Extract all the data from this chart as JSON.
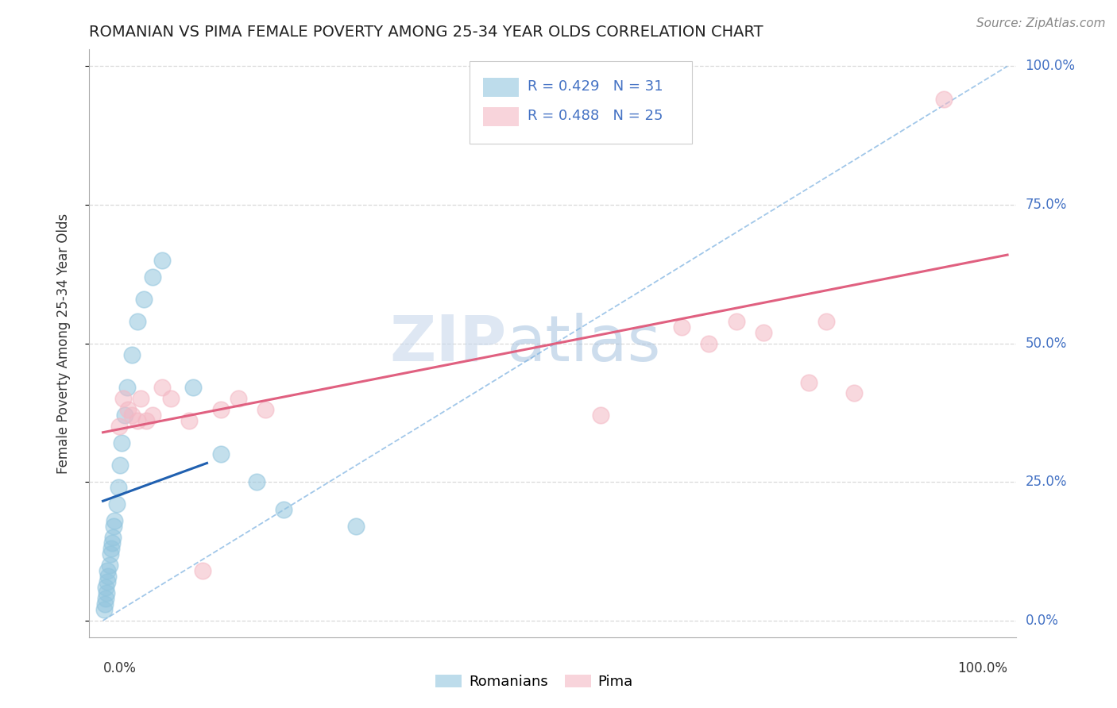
{
  "title": "ROMANIAN VS PIMA FEMALE POVERTY AMONG 25-34 YEAR OLDS CORRELATION CHART",
  "source": "Source: ZipAtlas.com",
  "ylabel": "Female Poverty Among 25-34 Year Olds",
  "legend_romanian": "R = 0.429   N = 31",
  "legend_pima": "R = 0.488   N = 25",
  "legend_label1": "Romanians",
  "legend_label2": "Pima",
  "romanian_x": [
    0.001,
    0.002,
    0.003,
    0.003,
    0.004,
    0.005,
    0.005,
    0.006,
    0.007,
    0.008,
    0.009,
    0.01,
    0.011,
    0.012,
    0.013,
    0.015,
    0.017,
    0.019,
    0.021,
    0.024,
    0.027,
    0.032,
    0.038,
    0.045,
    0.055,
    0.065,
    0.1,
    0.13,
    0.17,
    0.2,
    0.28
  ],
  "romanian_y": [
    0.02,
    0.03,
    0.04,
    0.06,
    0.05,
    0.07,
    0.09,
    0.08,
    0.1,
    0.12,
    0.13,
    0.14,
    0.15,
    0.17,
    0.18,
    0.21,
    0.24,
    0.28,
    0.32,
    0.37,
    0.42,
    0.48,
    0.54,
    0.58,
    0.62,
    0.65,
    0.42,
    0.3,
    0.25,
    0.2,
    0.17
  ],
  "pima_x": [
    0.018,
    0.022,
    0.028,
    0.032,
    0.038,
    0.042,
    0.048,
    0.055,
    0.065,
    0.075,
    0.095,
    0.11,
    0.13,
    0.15,
    0.18,
    0.55,
    0.6,
    0.64,
    0.67,
    0.7,
    0.73,
    0.78,
    0.8,
    0.83,
    0.93
  ],
  "pima_y": [
    0.35,
    0.4,
    0.38,
    0.37,
    0.36,
    0.4,
    0.36,
    0.37,
    0.42,
    0.4,
    0.36,
    0.09,
    0.38,
    0.4,
    0.38,
    0.37,
    0.95,
    0.53,
    0.5,
    0.54,
    0.52,
    0.43,
    0.54,
    0.41,
    0.94
  ],
  "romanian_color": "#92c5de",
  "pima_color": "#f4b8c4",
  "trend_romanian_color": "#2060b0",
  "trend_pima_color": "#e06080",
  "ref_line_color": "#7ab0e0",
  "background_color": "#ffffff",
  "grid_color": "#d0d0d0",
  "ytick_labels": [
    "0.0%",
    "25.0%",
    "50.0%",
    "75.0%",
    "100.0%"
  ],
  "ytick_vals": [
    0.0,
    0.25,
    0.5,
    0.75,
    1.0
  ],
  "label_color": "#4472c4",
  "watermark_zip": "ZIP",
  "watermark_atlas": "atlas",
  "watermark_color_zip": "#c8d8ec",
  "watermark_color_atlas": "#9dbcdc"
}
